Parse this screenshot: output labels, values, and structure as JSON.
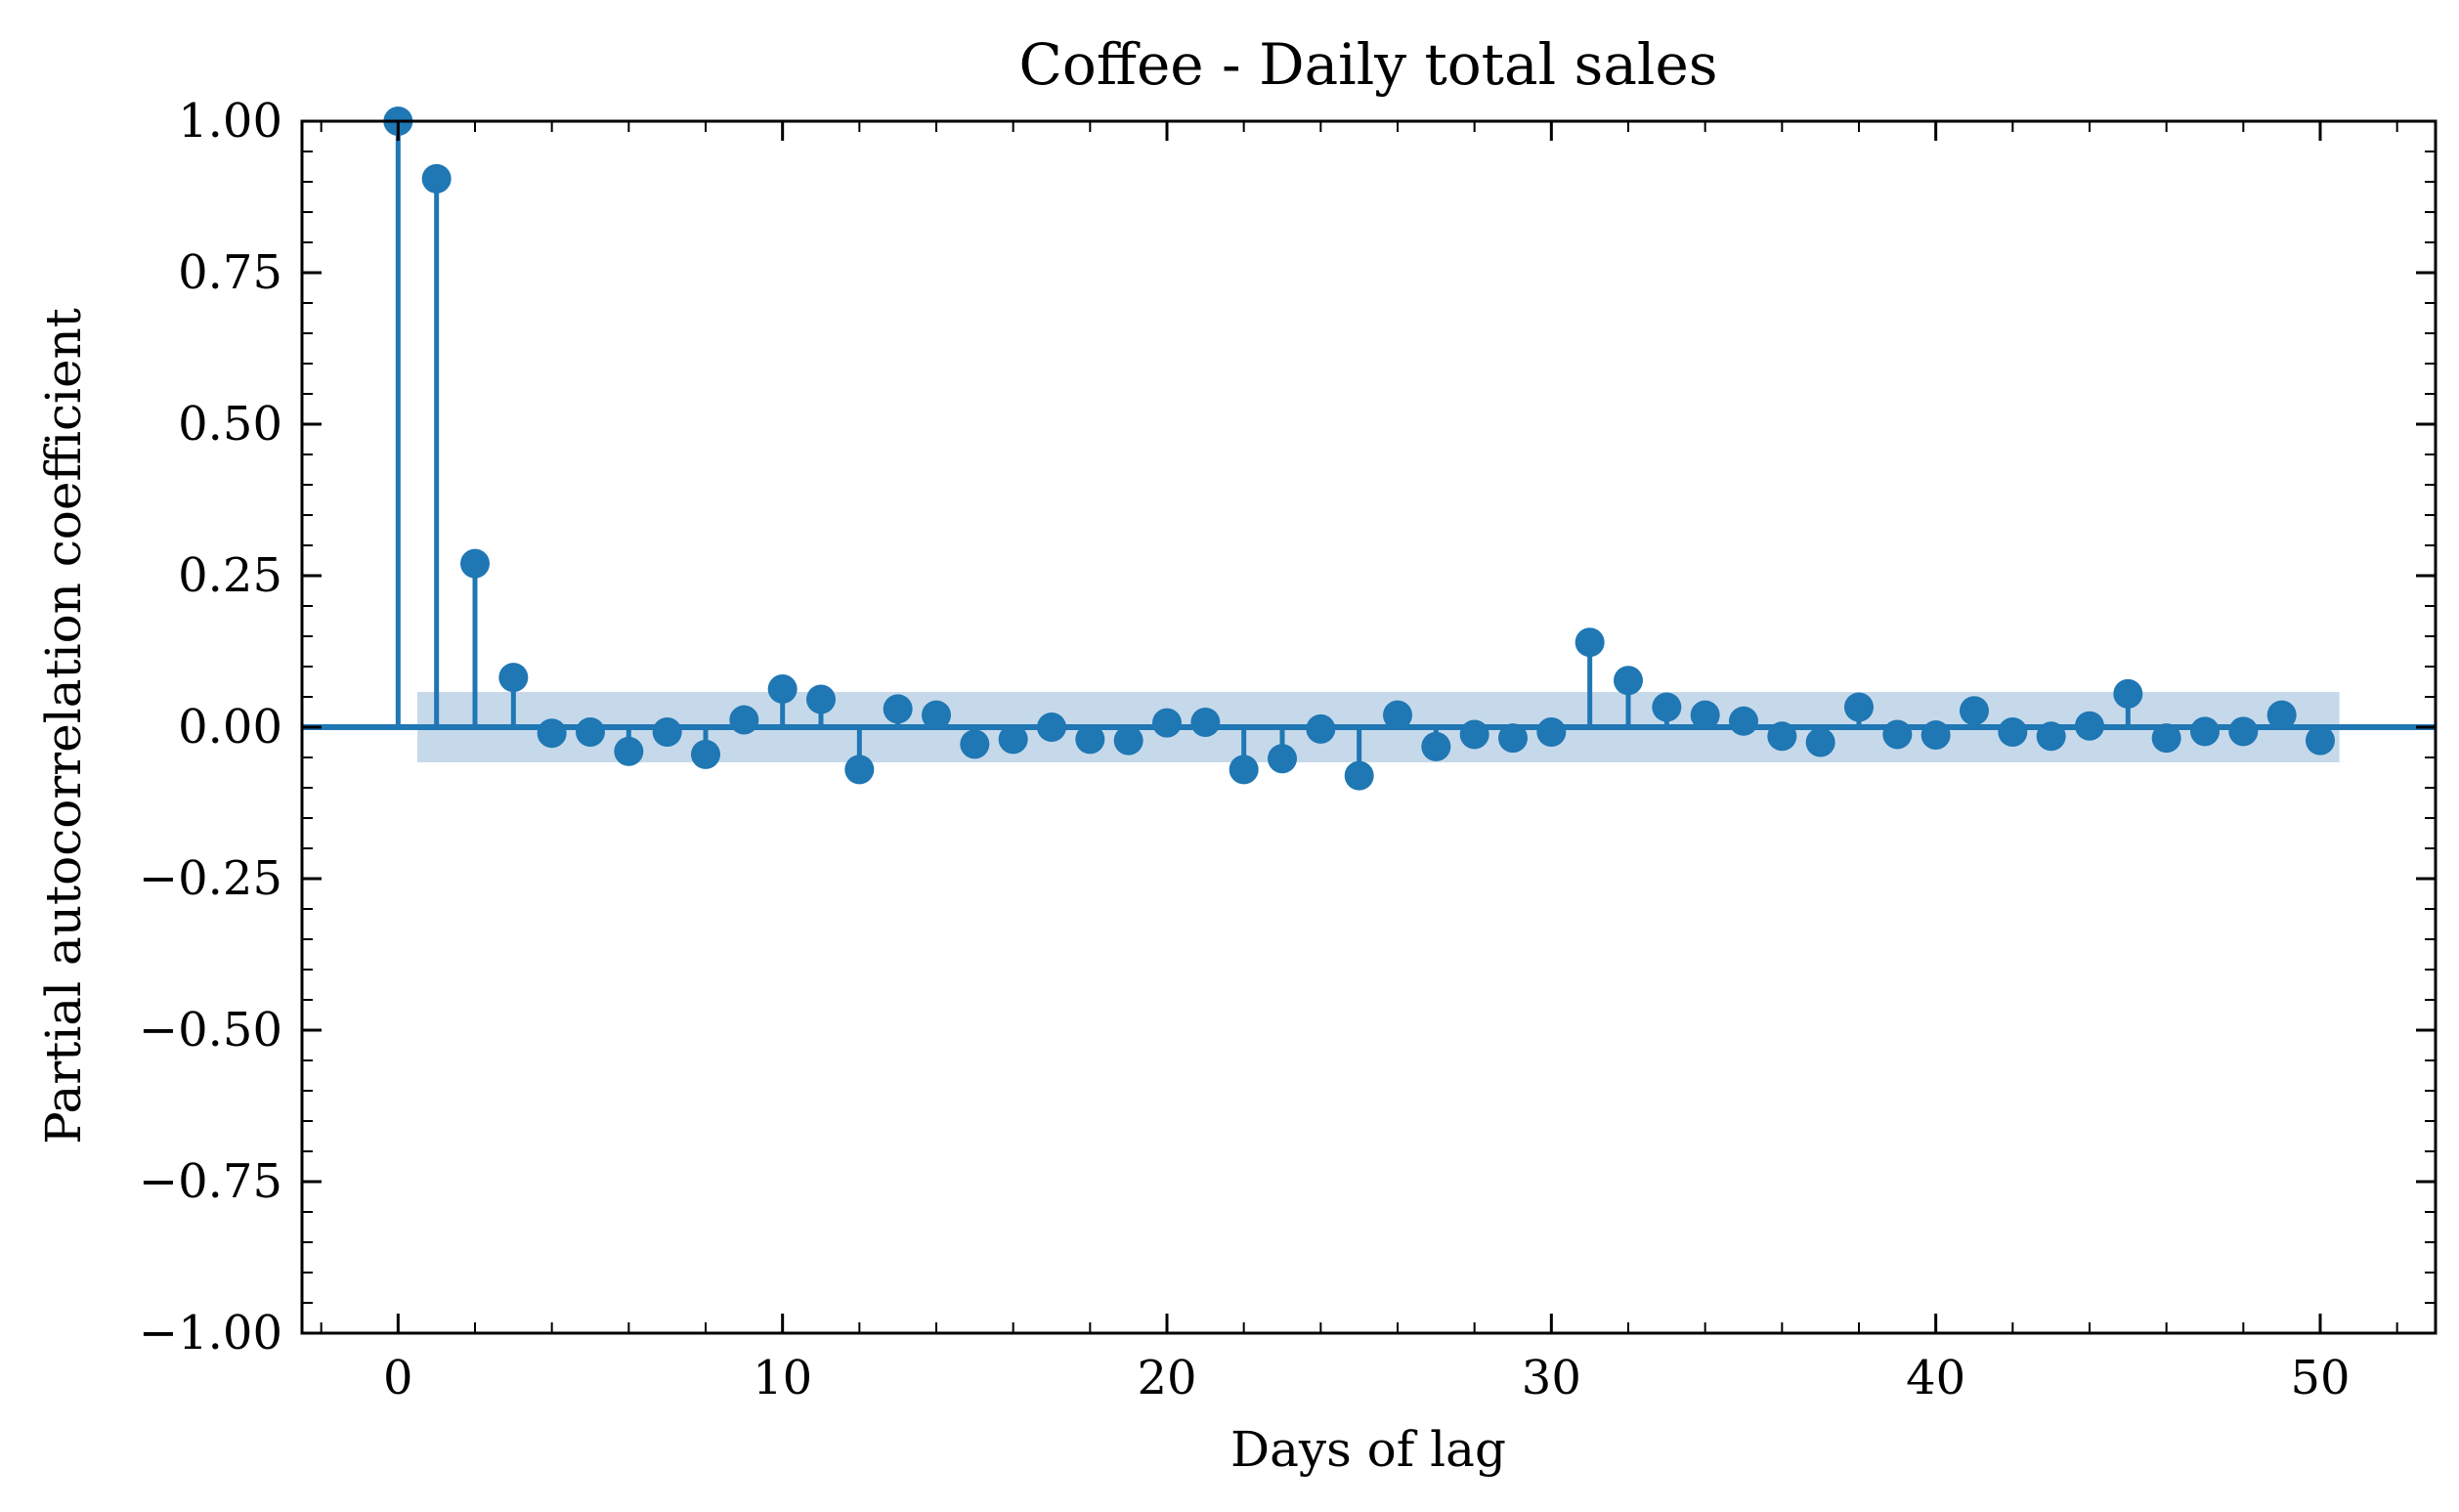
{
  "chart_data": {
    "type": "stem",
    "title": "Coffee - Daily total sales",
    "xlabel": "Days of lag",
    "ylabel": "Partial autocorrelation coefficient",
    "xlim": [
      -2.5,
      53
    ],
    "ylim": [
      -1.0,
      1.0
    ],
    "x_ticks": [
      0,
      10,
      20,
      30,
      40,
      50
    ],
    "x_tick_labels": [
      "0",
      "10",
      "20",
      "30",
      "40",
      "50"
    ],
    "y_ticks": [
      -1.0,
      -0.75,
      -0.5,
      -0.25,
      0.0,
      0.25,
      0.5,
      0.75,
      1.0
    ],
    "y_tick_labels": [
      "−1.00",
      "−0.75",
      "−0.50",
      "−0.25",
      "0.00",
      "0.25",
      "0.50",
      "0.75",
      "1.00"
    ],
    "confidence_band": [
      -0.058,
      0.058
    ],
    "color": "#1f77b4",
    "band_color": "#c6d9ea",
    "lags": [
      0,
      1,
      2,
      3,
      4,
      5,
      6,
      7,
      8,
      9,
      10,
      11,
      12,
      13,
      14,
      15,
      16,
      17,
      18,
      19,
      20,
      21,
      22,
      23,
      24,
      25,
      26,
      27,
      28,
      29,
      30,
      31,
      32,
      33,
      34,
      35,
      36,
      37,
      38,
      39,
      40,
      41,
      42,
      43,
      44,
      45,
      46,
      47,
      48,
      49,
      50
    ],
    "values": [
      1.0,
      0.905,
      0.27,
      0.082,
      -0.01,
      -0.008,
      -0.04,
      -0.008,
      -0.045,
      0.012,
      0.063,
      0.046,
      -0.07,
      0.03,
      0.02,
      -0.028,
      -0.02,
      0.0,
      -0.02,
      -0.022,
      0.007,
      0.008,
      -0.07,
      -0.052,
      -0.003,
      -0.08,
      0.02,
      -0.032,
      -0.012,
      -0.018,
      -0.008,
      0.14,
      0.077,
      0.033,
      0.02,
      0.01,
      -0.015,
      -0.025,
      0.033,
      -0.012,
      -0.013,
      0.027,
      -0.008,
      -0.015,
      0.002,
      0.055,
      -0.018,
      -0.007,
      -0.007,
      0.02,
      -0.022
    ]
  }
}
